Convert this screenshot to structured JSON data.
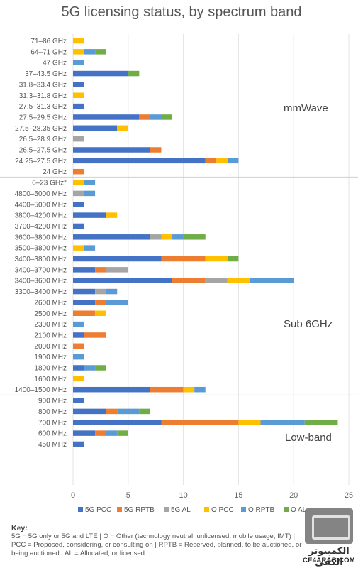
{
  "chart_data": {
    "type": "bar",
    "orientation": "horizontal",
    "stacked": true,
    "title": "5G licensing status, by spectrum band",
    "xlim": [
      0,
      25
    ],
    "xticks": [
      0,
      5,
      10,
      15,
      20,
      25
    ],
    "grid": true,
    "legend_position": "bottom",
    "categories": [
      "71–86 GHz",
      "64–71 GHz",
      "47 GHz",
      "37–43.5 GHz",
      "31.8–33.4 GHz",
      "31.3–31.8 GHz",
      "27.5–31.3 GHz",
      "27.5–29.5 GHz",
      "27.5–28.35 GHz",
      "26.5–28.9 GHz",
      "26.5–27.5 GHz",
      "24.25–27.5 GHz",
      "24 GHz",
      "6–23 GHz*",
      "4800–5000 MHz",
      "4400–5000 MHz",
      "3800–4200 MHz",
      "3700–4200 MHz",
      "3600–3800 MHz",
      "3500–3800 MHz",
      "3400–3800 MHz",
      "3400–3700 MHz",
      "3400–3600 MHz",
      "3300–3400 MHz",
      "2600 MHz",
      "2500 MHz",
      "2300 MHz",
      "2100 MHz",
      "2000 MHz",
      "1900 MHz",
      "1800 MHz",
      "1600 MHz",
      "1400–1500 MHz",
      "900 MHz",
      "800 MHz",
      "700 MHz",
      "600 MHz",
      "450 MHz"
    ],
    "series": [
      {
        "name": "5G PCC",
        "color": "#4472c4",
        "values": [
          0,
          0,
          0,
          5,
          1,
          0,
          1,
          6,
          4,
          0,
          7,
          12,
          0,
          0,
          0,
          1,
          3,
          1,
          7,
          0,
          8,
          2,
          9,
          2,
          2,
          0,
          0,
          1,
          0,
          0,
          1,
          0,
          7,
          1,
          3,
          8,
          2,
          1
        ]
      },
      {
        "name": "5G RPTB",
        "color": "#ed7d31",
        "values": [
          0,
          0,
          0,
          0,
          0,
          0,
          0,
          1,
          0,
          0,
          1,
          1,
          1,
          0,
          0,
          0,
          0,
          0,
          0,
          0,
          4,
          1,
          3,
          0,
          1,
          2,
          0,
          2,
          1,
          0,
          0,
          0,
          3,
          0,
          1,
          7,
          1,
          0
        ]
      },
      {
        "name": "5G AL",
        "color": "#a5a5a5",
        "values": [
          0,
          0,
          0,
          0,
          0,
          0,
          0,
          0,
          0,
          1,
          0,
          0,
          0,
          0,
          1,
          0,
          0,
          0,
          1,
          0,
          0,
          2,
          2,
          1,
          0,
          0,
          0,
          0,
          0,
          0,
          0,
          0,
          0,
          0,
          0,
          0,
          0,
          0
        ]
      },
      {
        "name": "O PCC",
        "color": "#ffc000",
        "values": [
          1,
          1,
          0,
          0,
          0,
          1,
          0,
          0,
          1,
          0,
          0,
          1,
          0,
          1,
          0,
          0,
          1,
          0,
          1,
          1,
          2,
          0,
          2,
          0,
          0,
          1,
          0,
          0,
          0,
          0,
          0,
          1,
          1,
          0,
          0,
          2,
          0,
          0
        ]
      },
      {
        "name": "O RPTB",
        "color": "#5b9bd5",
        "values": [
          0,
          1,
          1,
          0,
          0,
          0,
          0,
          1,
          0,
          0,
          0,
          1,
          0,
          1,
          1,
          0,
          0,
          0,
          1,
          1,
          0,
          0,
          4,
          1,
          2,
          0,
          1,
          0,
          0,
          1,
          1,
          0,
          1,
          0,
          2,
          4,
          1,
          0
        ]
      },
      {
        "name": "O AL",
        "color": "#70ad47",
        "values": [
          0,
          1,
          0,
          1,
          0,
          0,
          0,
          1,
          0,
          0,
          0,
          0,
          0,
          0,
          0,
          0,
          0,
          0,
          2,
          0,
          1,
          0,
          0,
          0,
          0,
          0,
          0,
          0,
          0,
          0,
          1,
          0,
          0,
          0,
          1,
          3,
          1,
          0
        ]
      }
    ],
    "annotations": [
      "mmWave",
      "Sub 6GHz",
      "Low-band"
    ]
  },
  "key": {
    "title": "Key:",
    "text": "5G = 5G only or 5G and LTE | O = Other (technology neutral, unlicensed, mobile usage, IMT) | PCC = Proposed, considering, or consulting on | RPTB = Reserved, planned, to be auctioned, or being auctioned | AL = Allocated, or licensed"
  },
  "watermark": {
    "arabic": "الكمبيوتر الكفي",
    "site": "CE4ARAB.COM"
  }
}
